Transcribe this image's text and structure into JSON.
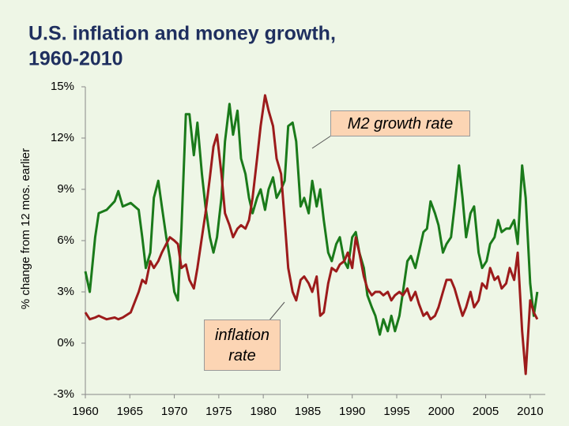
{
  "chart_data": {
    "type": "line",
    "title": "U.S. inflation and money growth,",
    "subtitle": "1960-2010",
    "y_label": "% change from 12 mos. earlier",
    "xlim": [
      1960,
      2011.7
    ],
    "xticks": [
      1960,
      1965,
      1970,
      1975,
      1980,
      1985,
      1990,
      1995,
      2000,
      2005,
      2010
    ],
    "ylim": [
      -3,
      15
    ],
    "yticks": [
      {
        "value": -3,
        "label": "-3%"
      },
      {
        "value": 0,
        "label": "0%"
      },
      {
        "value": 3,
        "label": "3%"
      },
      {
        "value": 6,
        "label": "6%"
      },
      {
        "value": 9,
        "label": "9%"
      },
      {
        "value": 12,
        "label": "12%"
      },
      {
        "value": 15,
        "label": "15%"
      }
    ],
    "grid": false,
    "annotations": [
      "M2 growth rate",
      "inflation rate"
    ],
    "x": [
      1960.0,
      1960.5,
      1961.1,
      1961.5,
      1962.4,
      1963.3,
      1963.7,
      1964.2,
      1965.1,
      1966.0,
      1966.4,
      1966.8,
      1967.3,
      1967.7,
      1968.2,
      1968.6,
      1969.1,
      1969.5,
      1970.0,
      1970.4,
      1970.8,
      1971.3,
      1971.7,
      1972.2,
      1972.6,
      1973.1,
      1973.5,
      1974.0,
      1974.4,
      1974.8,
      1975.3,
      1975.7,
      1976.2,
      1976.6,
      1977.1,
      1977.5,
      1978.0,
      1978.4,
      1978.8,
      1979.3,
      1979.7,
      1980.2,
      1980.6,
      1981.1,
      1981.5,
      1982.0,
      1982.4,
      1982.8,
      1983.3,
      1983.7,
      1984.2,
      1984.6,
      1985.1,
      1985.5,
      1986.0,
      1986.4,
      1986.8,
      1987.3,
      1987.7,
      1988.2,
      1988.6,
      1989.1,
      1989.5,
      1990.0,
      1990.4,
      1990.8,
      1991.3,
      1991.7,
      1992.2,
      1992.6,
      1993.1,
      1993.5,
      1994.0,
      1994.4,
      1994.8,
      1995.3,
      1995.7,
      1996.2,
      1996.6,
      1997.1,
      1997.5,
      1998.0,
      1998.4,
      1998.8,
      1999.3,
      1999.7,
      2000.2,
      2000.6,
      2001.1,
      2001.5,
      2002.0,
      2002.4,
      2002.8,
      2003.3,
      2003.7,
      2004.2,
      2004.6,
      2005.1,
      2005.5,
      2006.0,
      2006.4,
      2006.8,
      2007.3,
      2007.7,
      2008.2,
      2008.6,
      2009.1,
      2009.5,
      2010.0,
      2010.4,
      2010.8
    ],
    "series": [
      {
        "name": "M2 growth rate",
        "color": "#1a7a1a",
        "values": [
          4.2,
          3,
          6.2,
          7.6,
          7.8,
          8.3,
          8.9,
          8,
          8.2,
          7.8,
          6.2,
          4.4,
          5.3,
          8.5,
          9.5,
          8,
          6.2,
          5,
          3,
          2.5,
          6.7,
          13.4,
          13.4,
          11,
          12.9,
          9.9,
          8,
          6.2,
          5.3,
          6.2,
          8.5,
          11.8,
          14,
          12.2,
          13.6,
          10.8,
          9.9,
          8.5,
          7.6,
          8.5,
          9,
          7.8,
          9,
          9.7,
          8.5,
          9,
          9.5,
          12.7,
          12.9,
          11.8,
          8,
          8.5,
          7.6,
          9.5,
          8,
          9,
          7.2,
          5.3,
          4.8,
          5.8,
          6.2,
          4.8,
          4.4,
          6.2,
          6.5,
          5.3,
          4.4,
          2.8,
          2.1,
          1.6,
          0.5,
          1.4,
          0.7,
          1.6,
          0.7,
          1.6,
          3,
          4.8,
          5.1,
          4.4,
          5.3,
          6.5,
          6.7,
          8.3,
          7.6,
          6.9,
          5.3,
          5.8,
          6.2,
          8,
          10.4,
          8.5,
          6.2,
          7.6,
          8,
          5.3,
          4.4,
          4.8,
          5.8,
          6.2,
          7.2,
          6.5,
          6.7,
          6.7,
          7.2,
          5.8,
          10.4,
          8.5,
          3.5,
          1.6,
          3
        ]
      },
      {
        "name": "inflation rate",
        "color": "#9c1b1b",
        "values": [
          1.8,
          1.4,
          1.5,
          1.6,
          1.4,
          1.5,
          1.4,
          1.5,
          1.8,
          3,
          3.7,
          3.5,
          4.8,
          4.4,
          4.8,
          5.3,
          5.8,
          6.2,
          6,
          5.8,
          4.4,
          4.6,
          3.7,
          3.2,
          4.4,
          6.2,
          7.6,
          9.7,
          11.5,
          12.2,
          9.9,
          7.6,
          6.9,
          6.2,
          6.7,
          6.9,
          6.7,
          7.2,
          8.5,
          10.8,
          12.7,
          14.5,
          13.6,
          12.7,
          10.8,
          9.9,
          7.2,
          4.4,
          3,
          2.5,
          3.7,
          3.9,
          3.5,
          3,
          3.9,
          1.6,
          1.8,
          3.5,
          4.4,
          4.2,
          4.6,
          4.8,
          5.3,
          4.4,
          6.2,
          5.3,
          3.9,
          3.2,
          2.8,
          3,
          3,
          2.8,
          3,
          2.5,
          2.8,
          3,
          2.8,
          3.2,
          2.5,
          3,
          2.3,
          1.6,
          1.8,
          1.4,
          1.6,
          2.1,
          3,
          3.7,
          3.7,
          3.2,
          2.3,
          1.6,
          2.1,
          3,
          2.1,
          2.5,
          3.5,
          3.2,
          4.4,
          3.7,
          3.9,
          3.2,
          3.5,
          4.4,
          3.7,
          5.3,
          0.7,
          -1.8,
          2.5,
          1.8,
          1.4
        ]
      }
    ]
  }
}
